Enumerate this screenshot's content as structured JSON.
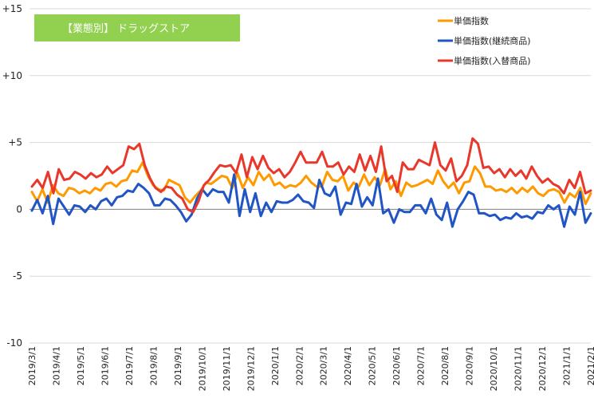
{
  "chart_data": {
    "type": "line",
    "title": "【業態別】 ドラッグストア",
    "badge_color": "#92D050",
    "ylim": [
      -10,
      15
    ],
    "y_ticks": [
      {
        "value": 15,
        "label": "+15"
      },
      {
        "value": 10,
        "label": "+10"
      },
      {
        "value": 5,
        "label": "+5"
      },
      {
        "value": 0,
        "label": "0"
      },
      {
        "value": -5,
        "label": "-5"
      },
      {
        "value": -10,
        "label": "-10"
      }
    ],
    "grid": "horizontal",
    "legend_position": "top-right",
    "x_tick_labels": [
      "2019/3/1",
      "2019/4/1",
      "2019/5/1",
      "2019/6/1",
      "2019/7/1",
      "2019/8/1",
      "2019/9/1",
      "2019/10/1",
      "2019/11/1",
      "2019/12/1",
      "2020/1/1",
      "2020/2/1",
      "2020/3/1",
      "2020/4/1",
      "2020/5/1",
      "2020/6/1",
      "2020/7/1",
      "2020/8/1",
      "2020/9/1",
      "2020/10/1",
      "2020/11/1",
      "2020/12/1",
      "2021/1/1",
      "2021/2/1"
    ],
    "series": [
      {
        "name": "単価指数",
        "color": "#FF9900",
        "values": [
          1.3,
          0.6,
          1.5,
          0.5,
          1.8,
          1.2,
          1.0,
          1.6,
          1.5,
          1.2,
          1.4,
          1.2,
          1.6,
          1.4,
          1.9,
          2.0,
          1.7,
          2.1,
          2.2,
          2.9,
          2.8,
          3.5,
          2.5,
          1.8,
          1.5,
          1.4,
          2.2,
          2.0,
          1.8,
          0.9,
          0.5,
          1.0,
          1.4,
          2.0,
          1.9,
          2.2,
          2.5,
          2.4,
          1.6,
          2.7,
          1.6,
          2.4,
          1.8,
          2.8,
          2.2,
          2.6,
          1.8,
          2.0,
          1.6,
          1.8,
          1.7,
          2.0,
          2.5,
          2.0,
          1.7,
          1.7,
          2.8,
          2.2,
          2.1,
          2.5,
          1.4,
          2.0,
          1.7,
          2.6,
          1.8,
          2.4,
          1.8,
          3.0,
          1.5,
          2.1,
          1.0,
          2.0,
          1.7,
          1.8,
          2.0,
          2.2,
          1.9,
          2.9,
          2.1,
          1.6,
          2.0,
          1.2,
          2.0,
          2.1,
          3.2,
          2.7,
          1.7,
          1.7,
          1.4,
          1.5,
          1.3,
          1.6,
          1.2,
          1.6,
          1.3,
          1.7,
          1.2,
          1.0,
          1.4,
          1.5,
          1.3,
          0.5,
          1.2,
          0.9,
          1.6,
          0.4,
          1.2
        ]
      },
      {
        "name": "単価指数(継続商品)",
        "color": "#2255C4",
        "values": [
          -0.1,
          0.7,
          -0.3,
          1.0,
          -1.1,
          0.8,
          0.2,
          -0.4,
          0.3,
          0.2,
          -0.2,
          0.3,
          0.0,
          0.6,
          0.8,
          0.3,
          0.9,
          1.0,
          1.4,
          1.3,
          1.9,
          1.6,
          1.2,
          0.3,
          0.3,
          0.8,
          0.7,
          0.3,
          -0.2,
          -0.9,
          -0.4,
          0.8,
          1.5,
          1.0,
          1.5,
          1.3,
          1.3,
          0.5,
          2.6,
          -0.5,
          1.5,
          -0.2,
          1.2,
          -0.5,
          0.5,
          -0.2,
          0.6,
          0.5,
          0.5,
          0.7,
          1.1,
          0.6,
          0.5,
          0.1,
          2.2,
          1.2,
          1.0,
          1.7,
          -0.4,
          0.5,
          0.4,
          1.9,
          0.2,
          0.9,
          0.3,
          2.3,
          -0.3,
          0.0,
          -1.0,
          0.0,
          -0.2,
          -0.2,
          0.3,
          0.3,
          -0.3,
          0.8,
          -0.4,
          -0.8,
          0.5,
          -1.3,
          0.0,
          0.6,
          1.3,
          1.1,
          -0.3,
          -0.3,
          -0.5,
          -0.4,
          -0.8,
          -0.6,
          -0.7,
          -0.3,
          -0.6,
          -0.5,
          -0.7,
          -0.2,
          -0.3,
          0.3,
          0.0,
          0.3,
          -1.3,
          0.2,
          -0.4,
          1.3,
          -1.0,
          -0.3
        ]
      },
      {
        "name": "単価指数(入替商品)",
        "color": "#E8372B",
        "values": [
          1.7,
          2.2,
          1.6,
          2.8,
          1.2,
          3.0,
          2.2,
          2.3,
          2.8,
          2.6,
          2.3,
          2.7,
          2.4,
          2.6,
          3.2,
          2.7,
          3.0,
          3.3,
          4.7,
          4.5,
          4.9,
          3.3,
          2.3,
          1.6,
          1.3,
          1.7,
          1.6,
          1.1,
          0.8,
          0.0,
          -0.2,
          0.6,
          1.8,
          2.2,
          2.8,
          3.3,
          3.2,
          3.3,
          2.7,
          4.1,
          2.4,
          3.9,
          3.0,
          4.0,
          3.1,
          2.7,
          3.0,
          2.4,
          2.8,
          3.5,
          4.3,
          3.5,
          3.5,
          3.5,
          4.3,
          3.2,
          3.2,
          3.5,
          2.6,
          3.2,
          2.8,
          4.1,
          2.9,
          4.0,
          2.8,
          4.7,
          2.1,
          2.5,
          1.3,
          3.5,
          3.0,
          3.0,
          3.7,
          3.5,
          3.3,
          5.0,
          3.3,
          2.9,
          3.8,
          2.1,
          2.5,
          3.3,
          5.3,
          4.9,
          3.1,
          3.2,
          2.7,
          3.0,
          2.4,
          3.0,
          2.5,
          2.9,
          2.3,
          3.2,
          2.5,
          2.0,
          2.3,
          1.9,
          1.7,
          1.2,
          2.2,
          1.6,
          2.8,
          1.2,
          1.4
        ]
      }
    ]
  }
}
